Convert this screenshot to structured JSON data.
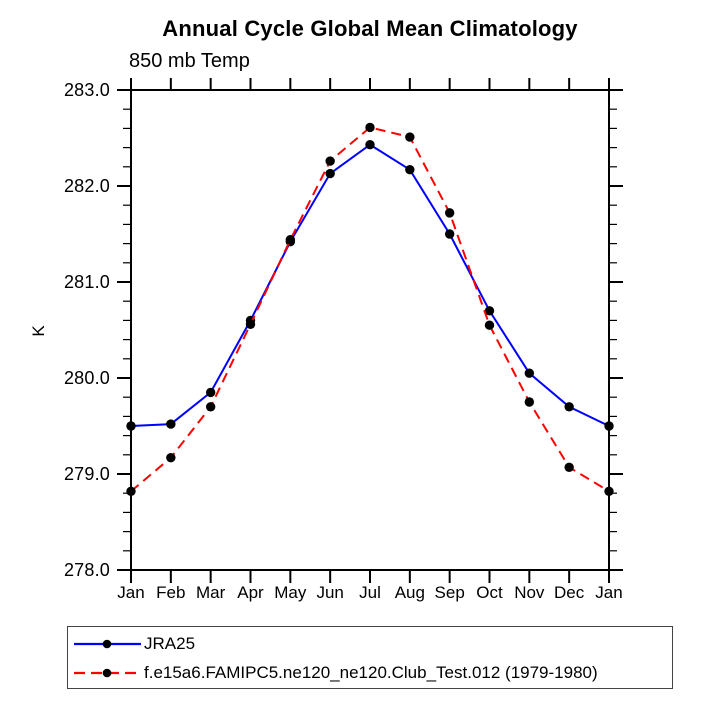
{
  "page": {
    "background": "#ffffff"
  },
  "chart_data": {
    "type": "line",
    "title": "Annual Cycle Global Mean Climatology",
    "subtitle": "850 mb Temp",
    "ylabel": "K",
    "xlabel": "",
    "x_categories": [
      "Jan",
      "Feb",
      "Mar",
      "Apr",
      "May",
      "Jun",
      "Jul",
      "Aug",
      "Sep",
      "Oct",
      "Nov",
      "Dec",
      "Jan"
    ],
    "ylim": [
      278.0,
      283.0
    ],
    "ytick_values": [
      283.0,
      282.0,
      281.0,
      280.0,
      279.0,
      278.0
    ],
    "ytick_labels": [
      "283.0",
      "282.0",
      "281.0",
      "280.0",
      "279.0",
      "278.0"
    ],
    "minor_tick_interval": 0.2,
    "grid": false,
    "legend_position": "bottom-left",
    "frame_color": "#000000",
    "series": [
      {
        "name": "JRA25",
        "color": "#0000ff",
        "line_style": "solid",
        "marker": "circle",
        "marker_color": "#000000",
        "values": [
          279.5,
          279.52,
          279.85,
          280.6,
          281.42,
          282.13,
          282.43,
          282.17,
          281.5,
          280.7,
          280.05,
          279.7,
          279.5
        ]
      },
      {
        "name": "f.e15a6.FAMIPC5.ne120_ne120.Club_Test.012 (1979-1980)",
        "color": "#ff0000",
        "line_style": "dashed",
        "marker": "circle",
        "marker_color": "#000000",
        "values": [
          278.82,
          279.17,
          279.7,
          280.56,
          281.44,
          282.26,
          282.61,
          282.51,
          281.72,
          280.55,
          279.75,
          279.07,
          278.82
        ]
      }
    ]
  }
}
